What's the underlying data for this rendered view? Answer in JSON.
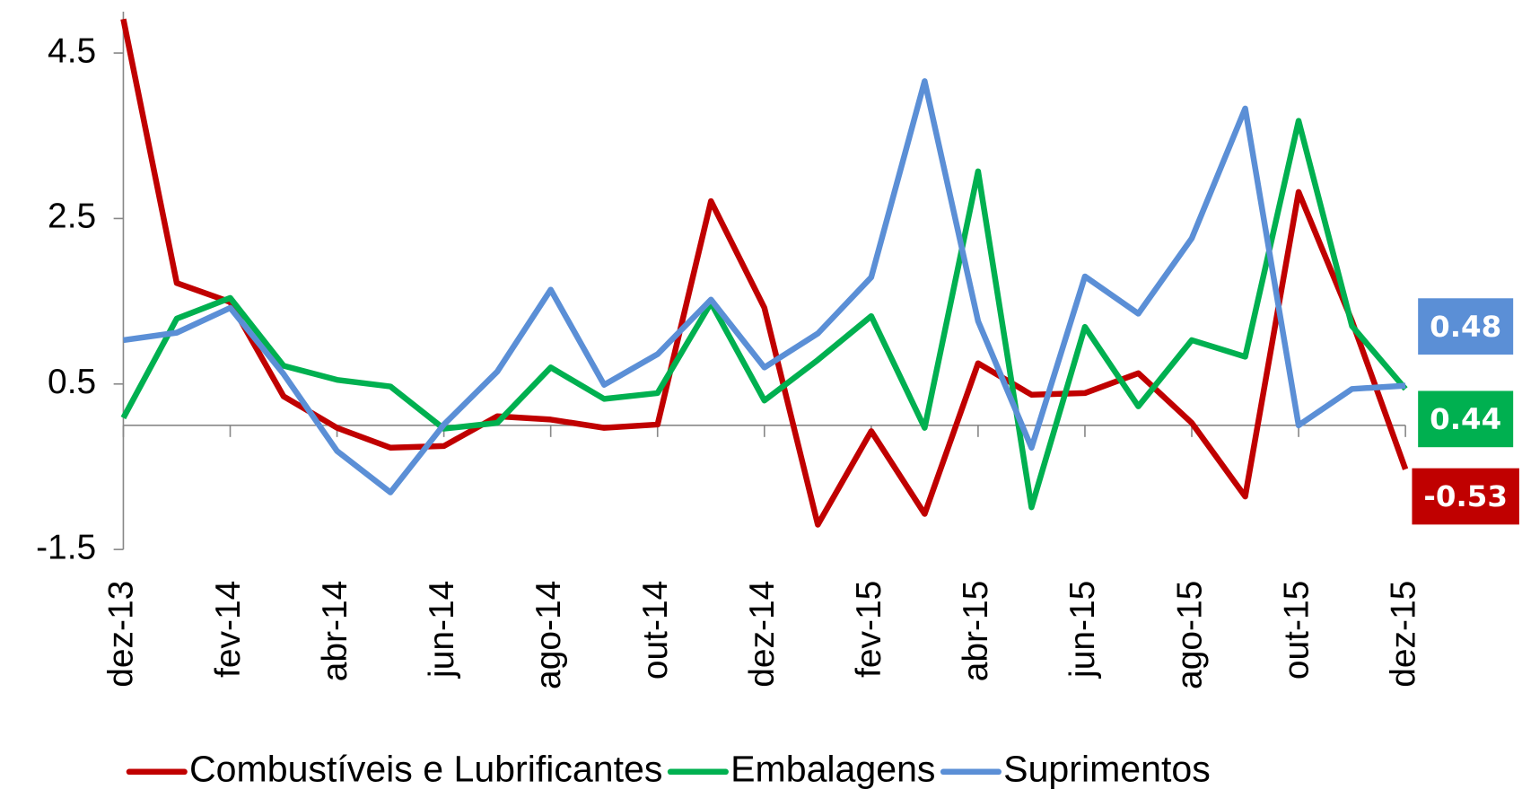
{
  "chart_data": {
    "type": "line",
    "categories": [
      "dez-13",
      null,
      "fev-14",
      null,
      "abr-14",
      null,
      "jun-14",
      null,
      "ago-14",
      null,
      "out-14",
      null,
      "dez-14",
      null,
      "fev-15",
      null,
      "abr-15",
      null,
      "jun-15",
      null,
      "ago-15",
      null,
      "out-15",
      null,
      "dez-15"
    ],
    "series": [
      {
        "name": "Combustíveis e Lubrificantes",
        "color": "#c00000",
        "values": [
          4.91,
          1.72,
          1.49,
          0.35,
          -0.03,
          -0.27,
          -0.25,
          0.11,
          0.07,
          -0.03,
          0.01,
          2.71,
          1.42,
          -1.2,
          -0.07,
          -1.07,
          0.75,
          0.37,
          0.39,
          0.63,
          0.03,
          -0.86,
          2.82,
          1.26,
          -0.53
        ]
      },
      {
        "name": "Embalagens",
        "color": "#00b050",
        "values": [
          0.09,
          1.29,
          1.54,
          0.72,
          0.55,
          0.47,
          -0.04,
          0.03,
          0.7,
          0.32,
          0.39,
          1.48,
          0.3,
          0.79,
          1.32,
          -0.03,
          3.07,
          -0.99,
          1.19,
          0.23,
          1.03,
          0.83,
          3.68,
          1.2,
          0.44
        ]
      },
      {
        "name": "Suprimentos",
        "color": "#5b8fd6",
        "values": [
          1.03,
          1.12,
          1.42,
          0.62,
          -0.31,
          -0.81,
          0.01,
          0.65,
          1.64,
          0.49,
          0.86,
          1.52,
          0.7,
          1.11,
          1.79,
          4.16,
          1.26,
          -0.27,
          1.8,
          1.35,
          2.26,
          3.83,
          0.0,
          0.44,
          0.48
        ]
      }
    ],
    "ylim": [
      -1.5,
      5
    ],
    "yticks": [
      -1.5,
      0.5,
      2.5,
      4.5
    ],
    "grid": false,
    "legend": "bottom"
  }
}
